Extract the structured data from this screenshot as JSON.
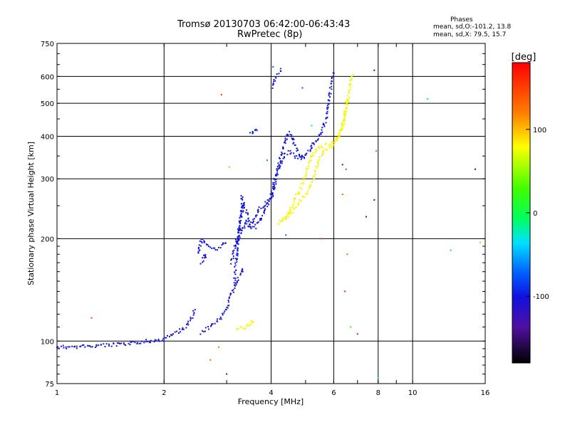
{
  "header": {
    "title": "Tromsø 20130703 06:42:00-06:43:43",
    "subtitle": "RwPretec (8p)"
  },
  "stats": {
    "heading": "Phases",
    "line1": "mean, sd,O:-101.2, 13.8",
    "line2": "mean, sd,X:  79.5, 15.7"
  },
  "colorbar": {
    "label": "[deg]",
    "ticks": [
      "100",
      "0",
      "-100"
    ],
    "tick_values": [
      100,
      0,
      -100
    ],
    "range": [
      -180,
      180
    ]
  },
  "chart_data": {
    "type": "scatter",
    "title": "Tromsø 20130703 06:42:00-06:43:43",
    "subtitle": "RwPretec (8p)",
    "xlabel": "Frequency [MHz]",
    "ylabel": "Stationary phase Virtual Height [km]",
    "xscale": "log",
    "yscale": "log",
    "xlim": [
      1,
      16
    ],
    "ylim": [
      75,
      750
    ],
    "xticks": [
      1,
      2,
      4,
      6,
      8,
      10,
      16
    ],
    "xtick_labels": [
      "1",
      "2",
      "4",
      "6",
      "8",
      "10",
      "16"
    ],
    "yticks": [
      75,
      100,
      200,
      300,
      400,
      500,
      600,
      750
    ],
    "ytick_labels": [
      "75",
      "100",
      "200",
      "300",
      "400",
      "500",
      "600",
      "750"
    ],
    "grid": true,
    "series": [
      {
        "mode": "O",
        "color_value_deg": -101.2,
        "traces": [
          [
            [
              1.0,
              96
            ],
            [
              1.1,
              96
            ],
            [
              1.2,
              96.5
            ],
            [
              1.3,
              97
            ],
            [
              1.45,
              97.5
            ],
            [
              1.6,
              98
            ],
            [
              1.75,
              100
            ],
            [
              1.9,
              100
            ],
            [
              2.0,
              101
            ],
            [
              2.1,
              104
            ],
            [
              2.3,
              110
            ],
            [
              2.4,
              118
            ],
            [
              2.45,
              125
            ]
          ],
          [
            [
              2.5,
              180
            ],
            [
              2.55,
              200
            ],
            [
              2.6,
              195
            ],
            [
              2.7,
              188
            ],
            [
              2.8,
              186
            ],
            [
              2.9,
              190
            ],
            [
              3.0,
              195
            ]
          ],
          [
            [
              2.55,
              170
            ],
            [
              2.6,
              180
            ],
            [
              2.65,
              175
            ]
          ],
          [
            [
              2.55,
              106
            ],
            [
              2.7,
              110
            ],
            [
              2.9,
              118
            ],
            [
              3.0,
              125
            ],
            [
              3.1,
              138
            ],
            [
              3.2,
              150
            ],
            [
              3.3,
              160
            ],
            [
              3.35,
              165
            ]
          ],
          [
            [
              3.1,
              170
            ],
            [
              3.2,
              200
            ],
            [
              3.3,
              230
            ],
            [
              3.35,
              255
            ],
            [
              3.4,
              240
            ],
            [
              3.5,
              220
            ],
            [
              3.6,
              230
            ],
            [
              3.7,
              245
            ],
            [
              3.8,
              250
            ],
            [
              3.9,
              255
            ],
            [
              4.0,
              260
            ],
            [
              4.1,
              290
            ],
            [
              4.2,
              330
            ],
            [
              4.3,
              365
            ],
            [
              4.4,
              390
            ],
            [
              4.5,
              410
            ],
            [
              4.6,
              395
            ],
            [
              4.7,
              370
            ],
            [
              4.8,
              355
            ],
            [
              4.9,
              350
            ],
            [
              5.0,
              352
            ],
            [
              5.1,
              360
            ],
            [
              5.2,
              375
            ],
            [
              5.3,
              385
            ],
            [
              5.4,
              390
            ],
            [
              5.5,
              400
            ],
            [
              5.6,
              420
            ],
            [
              5.7,
              450
            ],
            [
              5.8,
              500
            ],
            [
              5.9,
              560
            ],
            [
              6.0,
              620
            ]
          ],
          [
            [
              3.2,
              190
            ],
            [
              3.3,
              210
            ],
            [
              3.4,
              225
            ],
            [
              3.5,
              215
            ],
            [
              3.6,
              215
            ],
            [
              3.7,
              225
            ],
            [
              3.8,
              235
            ],
            [
              3.9,
              250
            ],
            [
              4.0,
              270
            ],
            [
              4.1,
              300
            ],
            [
              4.2,
              320
            ],
            [
              4.3,
              340
            ],
            [
              4.4,
              355
            ],
            [
              4.5,
              360
            ],
            [
              4.6,
              355
            ],
            [
              4.7,
              348
            ],
            [
              4.8,
              345
            ],
            [
              4.9,
              345
            ],
            [
              5.0,
              350
            ]
          ],
          [
            [
              3.15,
              150
            ],
            [
              3.2,
              175
            ],
            [
              3.25,
              205
            ],
            [
              3.3,
              245
            ],
            [
              3.32,
              270
            ]
          ],
          [
            [
              3.5,
              405
            ],
            [
              3.6,
              412
            ],
            [
              3.7,
              420
            ]
          ],
          [
            [
              4.05,
              560
            ],
            [
              4.1,
              590
            ],
            [
              4.2,
              610
            ],
            [
              4.3,
              630
            ]
          ]
        ]
      },
      {
        "mode": "X",
        "color_value_deg": 79.5,
        "traces": [
          [
            [
              3.2,
              108
            ],
            [
              3.3,
              109
            ],
            [
              3.4,
              110
            ],
            [
              3.5,
              112
            ],
            [
              3.6,
              116
            ]
          ],
          [
            [
              4.2,
              222
            ],
            [
              4.3,
              228
            ],
            [
              4.4,
              232
            ],
            [
              4.5,
              240
            ],
            [
              4.6,
              255
            ],
            [
              4.7,
              265
            ],
            [
              4.8,
              275
            ],
            [
              4.9,
              290
            ],
            [
              5.0,
              310
            ],
            [
              5.1,
              330
            ],
            [
              5.2,
              350
            ],
            [
              5.3,
              360
            ],
            [
              5.4,
              370
            ],
            [
              5.6,
              375
            ],
            [
              5.8,
              380
            ],
            [
              6.0,
              385
            ],
            [
              6.2,
              395
            ],
            [
              6.3,
              420
            ],
            [
              6.4,
              450
            ],
            [
              6.5,
              490
            ],
            [
              6.6,
              530
            ],
            [
              6.7,
              580
            ],
            [
              6.8,
              620
            ]
          ],
          [
            [
              4.3,
              225
            ],
            [
              4.5,
              235
            ],
            [
              4.8,
              255
            ],
            [
              5.0,
              270
            ],
            [
              5.2,
              290
            ],
            [
              5.4,
              330
            ],
            [
              5.6,
              360
            ],
            [
              5.9,
              372
            ],
            [
              6.1,
              385
            ],
            [
              6.4,
              440
            ],
            [
              6.6,
              510
            ]
          ]
        ]
      },
      {
        "mode": "noise",
        "points": [
          {
            "x": 1.25,
            "y": 117,
            "deg": 150
          },
          {
            "x": 2.7,
            "y": 88,
            "deg": 130
          },
          {
            "x": 2.9,
            "y": 530,
            "deg": 155
          },
          {
            "x": 3.0,
            "y": 80,
            "deg": -120
          },
          {
            "x": 3.05,
            "y": 325,
            "deg": 40
          },
          {
            "x": 2.85,
            "y": 96,
            "deg": 120
          },
          {
            "x": 4.05,
            "y": 640,
            "deg": -80
          },
          {
            "x": 4.4,
            "y": 205,
            "deg": -70
          },
          {
            "x": 4.9,
            "y": 555,
            "deg": -80
          },
          {
            "x": 5.2,
            "y": 430,
            "deg": -40
          },
          {
            "x": 5.5,
            "y": 200,
            "deg": 150
          },
          {
            "x": 6.35,
            "y": 330,
            "deg": -100
          },
          {
            "x": 6.5,
            "y": 320,
            "deg": 150
          },
          {
            "x": 6.55,
            "y": 180,
            "deg": 130
          },
          {
            "x": 6.7,
            "y": 110,
            "deg": 20
          },
          {
            "x": 7.0,
            "y": 105,
            "deg": 170
          },
          {
            "x": 7.4,
            "y": 232,
            "deg": -110
          },
          {
            "x": 7.8,
            "y": 625,
            "deg": -110
          },
          {
            "x": 7.8,
            "y": 260,
            "deg": -110
          },
          {
            "x": 7.9,
            "y": 362,
            "deg": 140
          },
          {
            "x": 8.0,
            "y": 78,
            "deg": -20
          },
          {
            "x": 11.0,
            "y": 515,
            "deg": -10
          },
          {
            "x": 12.8,
            "y": 185,
            "deg": -40
          },
          {
            "x": 15.0,
            "y": 320,
            "deg": -110
          },
          {
            "x": 15.5,
            "y": 195,
            "deg": 100
          },
          {
            "x": 6.35,
            "y": 270,
            "deg": 140
          },
          {
            "x": 6.45,
            "y": 140,
            "deg": 160
          },
          {
            "x": 3.9,
            "y": 340,
            "deg": -60
          }
        ]
      }
    ]
  }
}
